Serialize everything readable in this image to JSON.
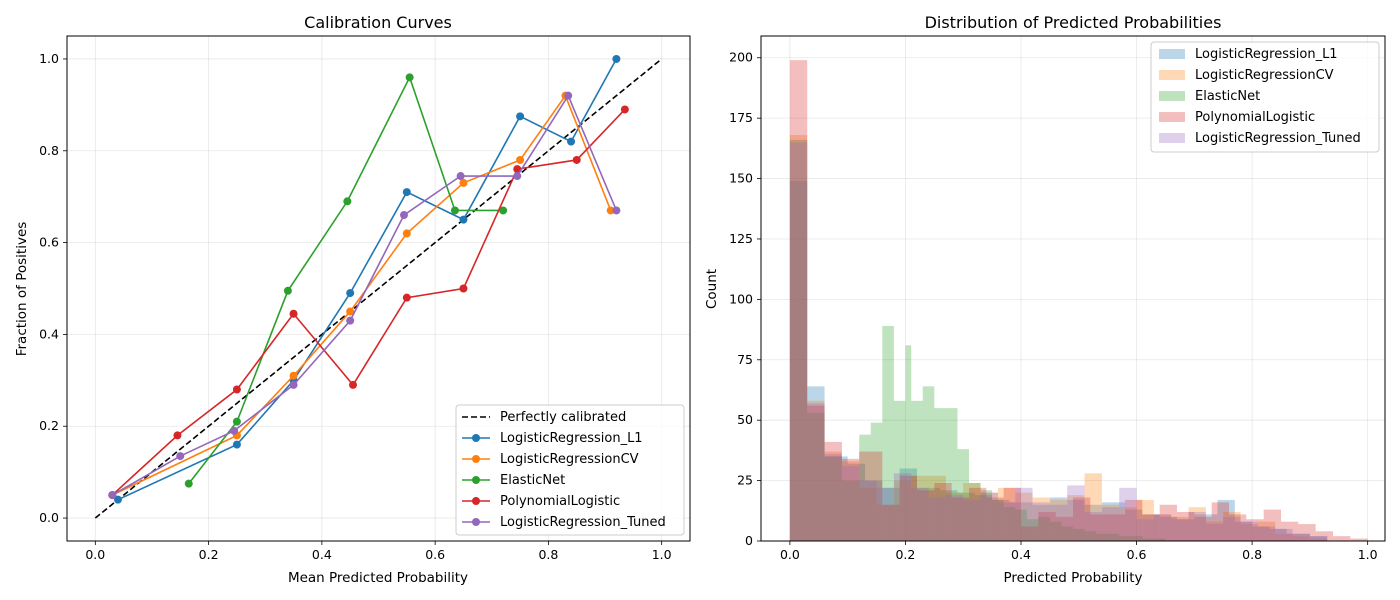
{
  "chart_data": [
    {
      "type": "line",
      "title": "Calibration Curves",
      "xlabel": "Mean Predicted Probability",
      "ylabel": "Fraction of Positives",
      "xlim": [
        -0.05,
        1.05
      ],
      "ylim": [
        -0.05,
        1.05
      ],
      "xticks": [
        "0.0",
        "0.2",
        "0.4",
        "0.6",
        "0.8",
        "1.0"
      ],
      "yticks": [
        "0.0",
        "0.2",
        "0.4",
        "0.6",
        "0.8",
        "1.0"
      ],
      "grid": true,
      "legend_position": "lower-right",
      "reference": {
        "name": "Perfectly calibrated",
        "color": "#000000",
        "style": "dashed",
        "x": [
          0.0,
          1.0
        ],
        "y": [
          0.0,
          1.0
        ]
      },
      "series": [
        {
          "name": "LogisticRegression_L1",
          "color": "#1f77b4",
          "x": [
            0.04,
            0.25,
            0.35,
            0.45,
            0.55,
            0.65,
            0.75,
            0.84,
            0.92
          ],
          "y": [
            0.04,
            0.16,
            0.3,
            0.49,
            0.71,
            0.65,
            0.875,
            0.82,
            1.0
          ]
        },
        {
          "name": "LogisticRegressionCV",
          "color": "#ff7f0e",
          "x": [
            0.03,
            0.25,
            0.35,
            0.45,
            0.55,
            0.65,
            0.75,
            0.83,
            0.91
          ],
          "y": [
            0.05,
            0.18,
            0.31,
            0.45,
            0.62,
            0.73,
            0.78,
            0.92,
            0.67
          ]
        },
        {
          "name": "ElasticNet",
          "color": "#2ca02c",
          "x": [
            0.165,
            0.25,
            0.34,
            0.445,
            0.555,
            0.635,
            0.72
          ],
          "y": [
            0.075,
            0.21,
            0.495,
            0.69,
            0.96,
            0.67,
            0.67
          ]
        },
        {
          "name": "PolynomialLogistic",
          "color": "#d62728",
          "x": [
            0.03,
            0.145,
            0.25,
            0.35,
            0.455,
            0.55,
            0.65,
            0.745,
            0.85,
            0.935
          ],
          "y": [
            0.05,
            0.18,
            0.28,
            0.445,
            0.29,
            0.48,
            0.5,
            0.76,
            0.78,
            0.89
          ]
        },
        {
          "name": "LogisticRegression_Tuned",
          "color": "#9467bd",
          "x": [
            0.03,
            0.15,
            0.245,
            0.35,
            0.45,
            0.545,
            0.645,
            0.745,
            0.835,
            0.92
          ],
          "y": [
            0.05,
            0.135,
            0.19,
            0.29,
            0.43,
            0.66,
            0.745,
            0.745,
            0.92,
            0.67
          ]
        }
      ]
    },
    {
      "type": "histogram",
      "title": "Distribution of Predicted Probabilities",
      "xlabel": "Predicted Probability",
      "ylabel": "Count",
      "xlim": [
        -0.05,
        1.03
      ],
      "ylim": [
        0,
        209
      ],
      "xticks": [
        "0.0",
        "0.2",
        "0.4",
        "0.6",
        "0.8",
        "1.0"
      ],
      "yticks": [
        "0",
        "25",
        "50",
        "75",
        "100",
        "125",
        "150",
        "175",
        "200"
      ],
      "grid": true,
      "legend_position": "upper-right",
      "opacity": 0.3,
      "series": [
        {
          "name": "LogisticRegression_L1",
          "color": "#1f77b4",
          "bins": [
            [
              0.0,
              0.03,
              149
            ],
            [
              0.03,
              0.06,
              64
            ],
            [
              0.06,
              0.1,
              35
            ],
            [
              0.1,
              0.13,
              32
            ],
            [
              0.13,
              0.16,
              25
            ],
            [
              0.16,
              0.19,
              22
            ],
            [
              0.19,
              0.22,
              30
            ],
            [
              0.22,
              0.26,
              22
            ],
            [
              0.26,
              0.29,
              21
            ],
            [
              0.29,
              0.32,
              20
            ],
            [
              0.32,
              0.35,
              19
            ],
            [
              0.35,
              0.38,
              17
            ],
            [
              0.38,
              0.42,
              16
            ],
            [
              0.42,
              0.45,
              15
            ],
            [
              0.45,
              0.48,
              18
            ],
            [
              0.48,
              0.51,
              17
            ],
            [
              0.51,
              0.54,
              15
            ],
            [
              0.54,
              0.58,
              16
            ],
            [
              0.58,
              0.61,
              13
            ],
            [
              0.61,
              0.64,
              11
            ],
            [
              0.64,
              0.67,
              10
            ],
            [
              0.67,
              0.7,
              9
            ],
            [
              0.7,
              0.74,
              11
            ],
            [
              0.74,
              0.77,
              17
            ],
            [
              0.77,
              0.8,
              8
            ],
            [
              0.8,
              0.83,
              6
            ],
            [
              0.83,
              0.86,
              5
            ],
            [
              0.86,
              0.9,
              3
            ],
            [
              0.9,
              0.93,
              2
            ]
          ]
        },
        {
          "name": "LogisticRegressionCV",
          "color": "#ff7f0e",
          "bins": [
            [
              0.0,
              0.03,
              168
            ],
            [
              0.03,
              0.06,
              58
            ],
            [
              0.06,
              0.09,
              37
            ],
            [
              0.09,
              0.12,
              33
            ],
            [
              0.12,
              0.15,
              22
            ],
            [
              0.15,
              0.18,
              15
            ],
            [
              0.18,
              0.21,
              25
            ],
            [
              0.21,
              0.24,
              27
            ],
            [
              0.24,
              0.27,
              27
            ],
            [
              0.27,
              0.3,
              20
            ],
            [
              0.3,
              0.33,
              24
            ],
            [
              0.33,
              0.36,
              20
            ],
            [
              0.36,
              0.39,
              22
            ],
            [
              0.39,
              0.42,
              20
            ],
            [
              0.42,
              0.45,
              18
            ],
            [
              0.45,
              0.48,
              17
            ],
            [
              0.48,
              0.51,
              19
            ],
            [
              0.51,
              0.54,
              28
            ],
            [
              0.54,
              0.57,
              15
            ],
            [
              0.57,
              0.6,
              14
            ],
            [
              0.6,
              0.63,
              17
            ],
            [
              0.63,
              0.66,
              11
            ],
            [
              0.66,
              0.69,
              10
            ],
            [
              0.69,
              0.72,
              14
            ],
            [
              0.72,
              0.75,
              8
            ],
            [
              0.75,
              0.78,
              12
            ],
            [
              0.78,
              0.81,
              7
            ],
            [
              0.81,
              0.84,
              8
            ],
            [
              0.84,
              0.87,
              3
            ],
            [
              0.87,
              0.9,
              2
            ],
            [
              0.9,
              0.93,
              1
            ]
          ]
        },
        {
          "name": "ElasticNet",
          "color": "#2ca02c",
          "bins": [
            [
              0.0,
              0.03,
              166
            ],
            [
              0.03,
              0.06,
              53
            ],
            [
              0.06,
              0.09,
              35
            ],
            [
              0.09,
              0.12,
              25
            ],
            [
              0.12,
              0.14,
              44
            ],
            [
              0.14,
              0.16,
              49
            ],
            [
              0.16,
              0.18,
              89
            ],
            [
              0.18,
              0.2,
              58
            ],
            [
              0.2,
              0.21,
              81
            ],
            [
              0.21,
              0.23,
              58
            ],
            [
              0.23,
              0.25,
              64
            ],
            [
              0.25,
              0.27,
              55
            ],
            [
              0.27,
              0.29,
              55
            ],
            [
              0.29,
              0.31,
              38
            ],
            [
              0.31,
              0.33,
              24
            ],
            [
              0.33,
              0.35,
              21
            ],
            [
              0.35,
              0.37,
              17
            ],
            [
              0.37,
              0.39,
              14
            ],
            [
              0.39,
              0.41,
              13
            ],
            [
              0.41,
              0.43,
              9
            ],
            [
              0.43,
              0.45,
              10
            ],
            [
              0.45,
              0.47,
              8
            ],
            [
              0.47,
              0.49,
              6
            ],
            [
              0.49,
              0.51,
              5
            ],
            [
              0.51,
              0.53,
              4
            ],
            [
              0.53,
              0.55,
              3
            ],
            [
              0.55,
              0.57,
              3
            ],
            [
              0.57,
              0.59,
              2
            ],
            [
              0.59,
              0.61,
              2
            ],
            [
              0.61,
              0.63,
              1
            ],
            [
              0.63,
              0.65,
              1
            ]
          ]
        },
        {
          "name": "PolynomialLogistic",
          "color": "#d62728",
          "bins": [
            [
              0.0,
              0.03,
              199
            ],
            [
              0.03,
              0.06,
              56
            ],
            [
              0.06,
              0.09,
              41
            ],
            [
              0.09,
              0.12,
              34
            ],
            [
              0.12,
              0.16,
              37
            ],
            [
              0.16,
              0.19,
              15
            ],
            [
              0.19,
              0.22,
              27
            ],
            [
              0.22,
              0.25,
              21
            ],
            [
              0.25,
              0.28,
              24
            ],
            [
              0.28,
              0.31,
              18
            ],
            [
              0.31,
              0.34,
              22
            ],
            [
              0.34,
              0.37,
              18
            ],
            [
              0.37,
              0.4,
              22
            ],
            [
              0.4,
              0.43,
              6
            ],
            [
              0.43,
              0.46,
              12
            ],
            [
              0.46,
              0.49,
              10
            ],
            [
              0.49,
              0.52,
              18
            ],
            [
              0.52,
              0.55,
              11
            ],
            [
              0.55,
              0.58,
              11
            ],
            [
              0.58,
              0.61,
              17
            ],
            [
              0.61,
              0.64,
              11
            ],
            [
              0.64,
              0.67,
              15
            ],
            [
              0.67,
              0.7,
              12
            ],
            [
              0.7,
              0.73,
              10
            ],
            [
              0.73,
              0.76,
              16
            ],
            [
              0.76,
              0.79,
              11
            ],
            [
              0.79,
              0.82,
              9
            ],
            [
              0.82,
              0.85,
              13
            ],
            [
              0.85,
              0.88,
              8
            ],
            [
              0.88,
              0.91,
              7
            ],
            [
              0.91,
              0.94,
              4
            ],
            [
              0.94,
              0.97,
              2
            ],
            [
              0.97,
              1.0,
              1
            ]
          ]
        },
        {
          "name": "LogisticRegression_Tuned",
          "color": "#9467bd",
          "bins": [
            [
              0.0,
              0.03,
              165
            ],
            [
              0.03,
              0.06,
              57
            ],
            [
              0.06,
              0.09,
              36
            ],
            [
              0.09,
              0.12,
              31
            ],
            [
              0.12,
              0.15,
              25
            ],
            [
              0.15,
              0.18,
              22
            ],
            [
              0.18,
              0.21,
              28
            ],
            [
              0.21,
              0.24,
              22
            ],
            [
              0.24,
              0.27,
              18
            ],
            [
              0.27,
              0.3,
              19
            ],
            [
              0.3,
              0.33,
              17
            ],
            [
              0.33,
              0.36,
              20
            ],
            [
              0.36,
              0.39,
              16
            ],
            [
              0.39,
              0.42,
              22
            ],
            [
              0.42,
              0.45,
              16
            ],
            [
              0.45,
              0.48,
              15
            ],
            [
              0.48,
              0.51,
              23
            ],
            [
              0.51,
              0.54,
              12
            ],
            [
              0.54,
              0.57,
              14
            ],
            [
              0.57,
              0.6,
              22
            ],
            [
              0.6,
              0.63,
              9
            ],
            [
              0.63,
              0.66,
              11
            ],
            [
              0.66,
              0.69,
              9
            ],
            [
              0.69,
              0.72,
              12
            ],
            [
              0.72,
              0.75,
              7
            ],
            [
              0.75,
              0.78,
              10
            ],
            [
              0.78,
              0.81,
              8
            ],
            [
              0.81,
              0.84,
              6
            ],
            [
              0.84,
              0.87,
              5
            ],
            [
              0.87,
              0.9,
              3
            ],
            [
              0.9,
              0.93,
              2
            ]
          ]
        }
      ]
    }
  ]
}
